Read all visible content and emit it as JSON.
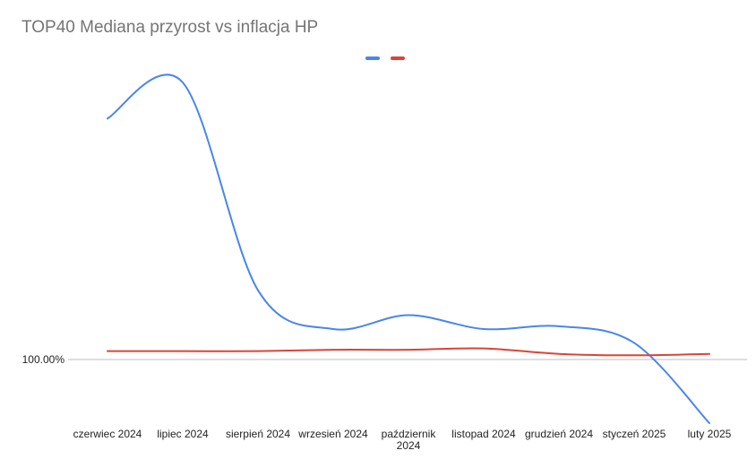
{
  "chart_data": {
    "type": "line",
    "title": "TOP40 Mediana przyrost vs inflacja HP",
    "categories": [
      "czerwiec 2024",
      "lipiec 2024",
      "sierpień 2024",
      "wrzesień 2024",
      "październik 2024",
      "listopad 2024",
      "grudzień 2024",
      "styczeń 2025",
      "luty 2025"
    ],
    "y_tick_labels": [
      "100.00%"
    ],
    "y_tick_values": [
      100.0
    ],
    "ylim": [
      99.77,
      101.0
    ],
    "grid": false,
    "legend_position": "top",
    "series": [
      {
        "color": "#4a86e8",
        "values": [
          100.87,
          101.0,
          100.25,
          100.11,
          100.16,
          100.11,
          100.12,
          100.06,
          99.77
        ]
      },
      {
        "color": "#db4437",
        "values": [
          100.03,
          100.03,
          100.03,
          100.035,
          100.035,
          100.04,
          100.02,
          100.015,
          100.02
        ]
      }
    ]
  }
}
